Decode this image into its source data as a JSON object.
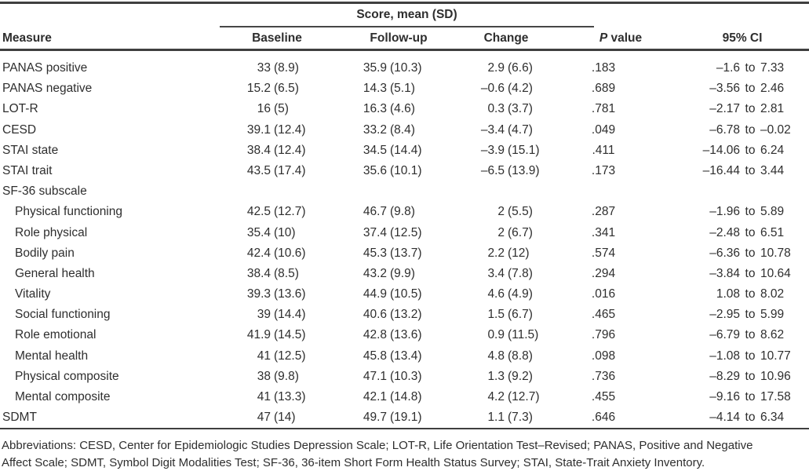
{
  "table": {
    "spanner_label": "Score, mean (SD)",
    "headers": {
      "measure": "Measure",
      "baseline": "Baseline",
      "followup": "Follow-up",
      "change": "Change",
      "p_italic": "P",
      "p_rest": " value",
      "ci": "95% CI"
    },
    "ci_separator": "to",
    "rows": [
      {
        "measure": "PANAS positive",
        "indent": false,
        "baseline": {
          "mean": "33",
          "sd": "(8.9)"
        },
        "followup": {
          "mean": "35.9",
          "sd": "(10.3)"
        },
        "change": {
          "mean": "2.9",
          "sd": "(6.6)"
        },
        "p": ".183",
        "ci": {
          "lo": "–1.6",
          "hi": "7.33"
        }
      },
      {
        "measure": "PANAS negative",
        "indent": false,
        "baseline": {
          "mean": "15.2",
          "sd": "(6.5)"
        },
        "followup": {
          "mean": "14.3",
          "sd": "(5.1)"
        },
        "change": {
          "mean": "–0.6",
          "sd": "(4.2)"
        },
        "p": ".689",
        "ci": {
          "lo": "–3.56",
          "hi": "2.46"
        }
      },
      {
        "measure": "LOT-R",
        "indent": false,
        "baseline": {
          "mean": "16",
          "sd": "(5)"
        },
        "followup": {
          "mean": "16.3",
          "sd": "(4.6)"
        },
        "change": {
          "mean": "0.3",
          "sd": "(3.7)"
        },
        "p": ".781",
        "ci": {
          "lo": "–2.17",
          "hi": "2.81"
        }
      },
      {
        "measure": "CESD",
        "indent": false,
        "baseline": {
          "mean": "39.1",
          "sd": "(12.4)"
        },
        "followup": {
          "mean": "33.2",
          "sd": "(8.4)"
        },
        "change": {
          "mean": "–3.4",
          "sd": "(4.7)"
        },
        "p": ".049",
        "ci": {
          "lo": "–6.78",
          "hi": "–0.02"
        }
      },
      {
        "measure": "STAI state",
        "indent": false,
        "baseline": {
          "mean": "38.4",
          "sd": "(12.4)"
        },
        "followup": {
          "mean": "34.5",
          "sd": "(14.4)"
        },
        "change": {
          "mean": "–3.9",
          "sd": "(15.1)"
        },
        "p": ".411",
        "ci": {
          "lo": "–14.06",
          "hi": "6.24"
        }
      },
      {
        "measure": "STAI trait",
        "indent": false,
        "baseline": {
          "mean": "43.5",
          "sd": "(17.4)"
        },
        "followup": {
          "mean": "35.6",
          "sd": "(10.1)"
        },
        "change": {
          "mean": "–6.5",
          "sd": "(13.9)"
        },
        "p": ".173",
        "ci": {
          "lo": "–16.44",
          "hi": "3.44"
        }
      },
      {
        "measure": "SF-36 subscale",
        "indent": false,
        "baseline": null,
        "followup": null,
        "change": null,
        "p": "",
        "ci": null
      },
      {
        "measure": "Physical functioning",
        "indent": true,
        "baseline": {
          "mean": "42.5",
          "sd": "(12.7)"
        },
        "followup": {
          "mean": "46.7",
          "sd": "(9.8)"
        },
        "change": {
          "mean": "2",
          "sd": "(5.5)"
        },
        "p": ".287",
        "ci": {
          "lo": "–1.96",
          "hi": "5.89"
        }
      },
      {
        "measure": "Role physical",
        "indent": true,
        "baseline": {
          "mean": "35.4",
          "sd": "(10)"
        },
        "followup": {
          "mean": "37.4",
          "sd": "(12.5)"
        },
        "change": {
          "mean": "2",
          "sd": "(6.7)"
        },
        "p": ".341",
        "ci": {
          "lo": "–2.48",
          "hi": "6.51"
        }
      },
      {
        "measure": "Bodily pain",
        "indent": true,
        "baseline": {
          "mean": "42.4",
          "sd": "(10.6)"
        },
        "followup": {
          "mean": "45.3",
          "sd": "(13.7)"
        },
        "change": {
          "mean": "2.2",
          "sd": "(12)"
        },
        "p": ".574",
        "ci": {
          "lo": "–6.36",
          "hi": "10.78"
        }
      },
      {
        "measure": "General health",
        "indent": true,
        "baseline": {
          "mean": "38.4",
          "sd": "(8.5)"
        },
        "followup": {
          "mean": "43.2",
          "sd": "(9.9)"
        },
        "change": {
          "mean": "3.4",
          "sd": "(7.8)"
        },
        "p": ".294",
        "ci": {
          "lo": "–3.84",
          "hi": "10.64"
        }
      },
      {
        "measure": "Vitality",
        "indent": true,
        "baseline": {
          "mean": "39.3",
          "sd": "(13.6)"
        },
        "followup": {
          "mean": "44.9",
          "sd": "(10.5)"
        },
        "change": {
          "mean": "4.6",
          "sd": "(4.9)"
        },
        "p": ".016",
        "ci": {
          "lo": "1.08",
          "hi": "8.02"
        }
      },
      {
        "measure": "Social functioning",
        "indent": true,
        "baseline": {
          "mean": "39",
          "sd": "(14.4)"
        },
        "followup": {
          "mean": "40.6",
          "sd": "(13.2)"
        },
        "change": {
          "mean": "1.5",
          "sd": "(6.7)"
        },
        "p": ".465",
        "ci": {
          "lo": "–2.95",
          "hi": "5.99"
        }
      },
      {
        "measure": "Role emotional",
        "indent": true,
        "baseline": {
          "mean": "41.9",
          "sd": "(14.5)"
        },
        "followup": {
          "mean": "42.8",
          "sd": "(13.6)"
        },
        "change": {
          "mean": "0.9",
          "sd": "(11.5)"
        },
        "p": ".796",
        "ci": {
          "lo": "–6.79",
          "hi": "8.62"
        }
      },
      {
        "measure": "Mental health",
        "indent": true,
        "baseline": {
          "mean": "41",
          "sd": "(12.5)"
        },
        "followup": {
          "mean": "45.8",
          "sd": "(13.4)"
        },
        "change": {
          "mean": "4.8",
          "sd": "(8.8)"
        },
        "p": ".098",
        "ci": {
          "lo": "–1.08",
          "hi": "10.77"
        }
      },
      {
        "measure": "Physical composite",
        "indent": true,
        "baseline": {
          "mean": "38",
          "sd": "(9.8)"
        },
        "followup": {
          "mean": "47.1",
          "sd": "(10.3)"
        },
        "change": {
          "mean": "1.3",
          "sd": "(9.2)"
        },
        "p": ".736",
        "ci": {
          "lo": "–8.29",
          "hi": "10.96"
        }
      },
      {
        "measure": "Mental composite",
        "indent": true,
        "baseline": {
          "mean": "41",
          "sd": "(13.3)"
        },
        "followup": {
          "mean": "42.1",
          "sd": "(14.8)"
        },
        "change": {
          "mean": "4.2",
          "sd": "(12.7)"
        },
        "p": ".455",
        "ci": {
          "lo": "–9.16",
          "hi": "17.58"
        }
      },
      {
        "measure": "SDMT",
        "indent": false,
        "baseline": {
          "mean": "47",
          "sd": "(14)"
        },
        "followup": {
          "mean": "49.7",
          "sd": "(19.1)"
        },
        "change": {
          "mean": "1.1",
          "sd": "(7.3)"
        },
        "p": ".646",
        "ci": {
          "lo": "–4.14",
          "hi": "6.34"
        }
      }
    ]
  },
  "footnote": {
    "line1": "Abbreviations: CESD, Center for Epidemiologic Studies Depression Scale; LOT-R, Life Orientation Test–Revised; PANAS, Positive and Negative",
    "line2": "Affect Scale; SDMT, Symbol Digit Modalities Test; SF-36, 36-item Short Form Health Status Survey; STAI, State-Trait Anxiety Inventory."
  }
}
